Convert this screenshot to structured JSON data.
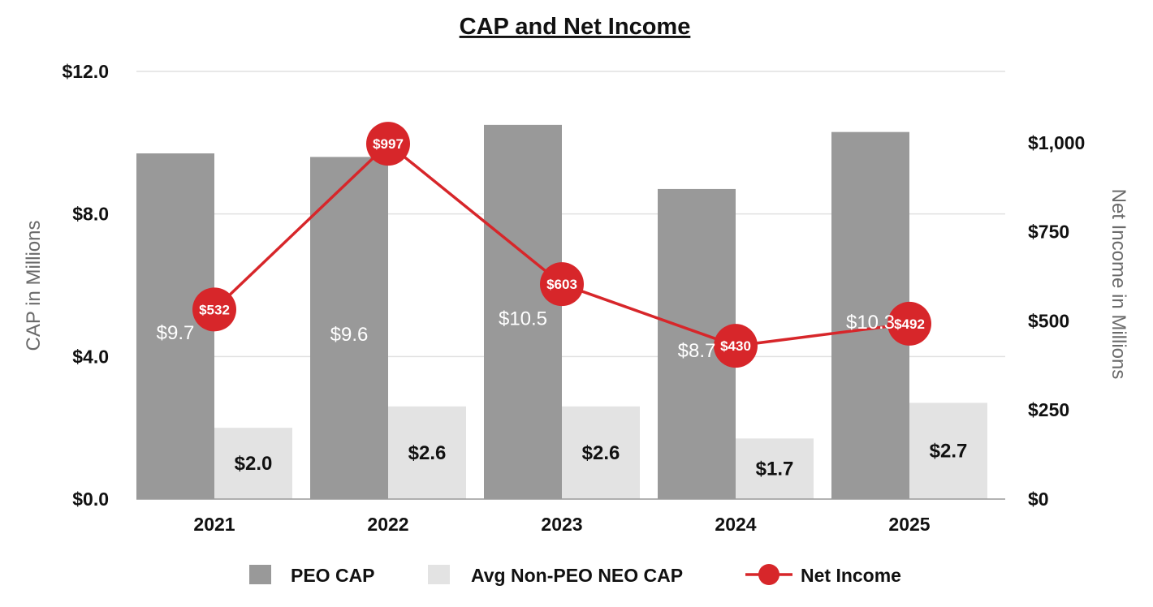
{
  "chart_data": {
    "type": "bar",
    "title": "CAP and Net Income",
    "categories": [
      "2021",
      "2022",
      "2023",
      "2024",
      "2025"
    ],
    "ylabel": "CAP in Millions",
    "y2label": "Net Income in Millions",
    "ylim": [
      0,
      12
    ],
    "y2lim": [
      0,
      1200
    ],
    "yticks": [
      0,
      4,
      8,
      12
    ],
    "ytick_labels": [
      "$0.0",
      "$4.0",
      "$8.0",
      "$12.0"
    ],
    "y2ticks": [
      0,
      250,
      500,
      750,
      1000
    ],
    "y2tick_labels": [
      "$0",
      "$250",
      "$500",
      "$750",
      "$1,000"
    ],
    "grid": true,
    "legend_position": "bottom",
    "series": [
      {
        "name": "PEO CAP",
        "type": "bar",
        "axis": "left",
        "color": "#999999",
        "values": [
          9.7,
          9.6,
          10.5,
          8.7,
          10.3
        ],
        "labels": [
          "$9.7",
          "$9.6",
          "$10.5",
          "$8.7",
          "$10.3"
        ]
      },
      {
        "name": "Avg Non-PEO NEO CAP",
        "type": "bar",
        "axis": "left",
        "color": "#e3e3e3",
        "values": [
          2.0,
          2.6,
          2.6,
          1.7,
          2.7
        ],
        "labels": [
          "$2.0",
          "$2.6",
          "$2.6",
          "$1.7",
          "$2.7"
        ]
      },
      {
        "name": "Net Income",
        "type": "line",
        "axis": "right",
        "color": "#d7262a",
        "values": [
          532,
          997,
          603,
          430,
          492
        ],
        "labels": [
          "$532",
          "$997",
          "$603",
          "$430",
          "$492"
        ]
      }
    ]
  }
}
